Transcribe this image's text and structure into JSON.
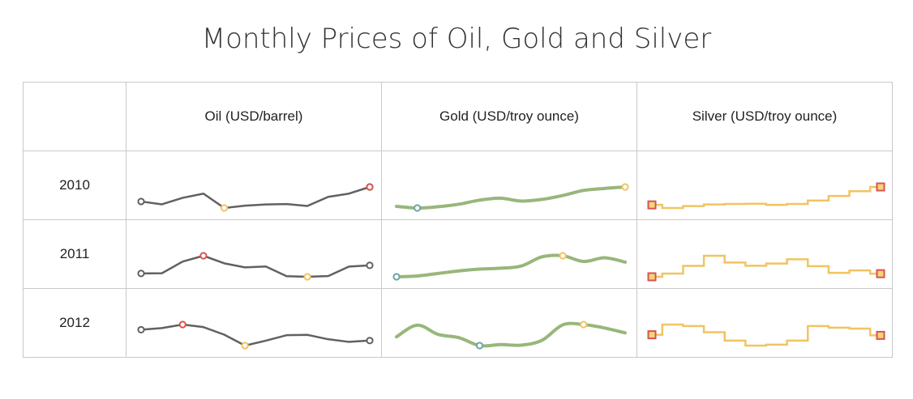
{
  "title": "Monthly Prices of Oil, Gold and Silver",
  "headers": [
    "",
    "Oil (USD/barrel)",
    "Gold (USD/troy ounce)",
    "Silver (USD/troy ounce)"
  ],
  "chart_data": {
    "type": "sparkline-table",
    "title": "Monthly Prices of Oil, Gold and Silver",
    "rows": [
      {
        "year": "2010",
        "oil": [
          78.5,
          76.4,
          81.2,
          84.3,
          73.7,
          75.4,
          76.3,
          76.6,
          75.2,
          81.9,
          84.3,
          89.2
        ],
        "gold": [
          1117.9,
          1095.4,
          1113.3,
          1148.7,
          1205.4,
          1232.9,
          1192.9,
          1215.8,
          1270.9,
          1342.0,
          1369.9,
          1390.6
        ],
        "silver": [
          17.8,
          15.9,
          17.1,
          18.1,
          18.4,
          18.5,
          17.8,
          18.4,
          20.5,
          23.3,
          26.2,
          28.8
        ]
      },
      {
        "year": "2011",
        "oil": [
          89.4,
          89.6,
          102.9,
          109.5,
          100.9,
          96.3,
          97.3,
          86.3,
          85.6,
          86.4,
          97.2,
          98.6
        ],
        "gold": [
          1356.4,
          1372.7,
          1424.0,
          1473.8,
          1510.4,
          1528.7,
          1572.8,
          1759.0,
          1780.0,
          1665.2,
          1738.9,
          1652.3
        ],
        "silver": [
          28.4,
          30.6,
          35.8,
          42.7,
          38.1,
          35.9,
          37.4,
          40.3,
          35.6,
          31.1,
          32.7,
          30.5
        ]
      },
      {
        "year": "2012",
        "oil": [
          100.3,
          102.2,
          106.2,
          103.3,
          94.7,
          82.3,
          87.9,
          94.1,
          94.5,
          89.5,
          86.5,
          88.0
        ],
        "gold": [
          1656.1,
          1742.1,
          1673.8,
          1649.7,
          1591.2,
          1598.5,
          1594.3,
          1630.3,
          1744.5,
          1746.6,
          1721.6,
          1684.8
        ],
        "silver": [
          30.6,
          33.9,
          33.4,
          31.4,
          28.7,
          27.1,
          27.4,
          28.7,
          33.4,
          32.9,
          32.6,
          30.4
        ]
      }
    ],
    "styles": {
      "oil": {
        "render": "line",
        "color": "#616161",
        "high_color": "#d9534f",
        "low_color": "#f0c463",
        "last_color": "#616161"
      },
      "gold": {
        "render": "spline",
        "color": "#97b77a",
        "high_color": "#f0c463",
        "low_color": "#6fa3a6"
      },
      "silver": {
        "render": "step",
        "color": "#f0c463",
        "marker_fill": "#f5d57a",
        "marker_stroke": "#d9534f"
      }
    }
  }
}
